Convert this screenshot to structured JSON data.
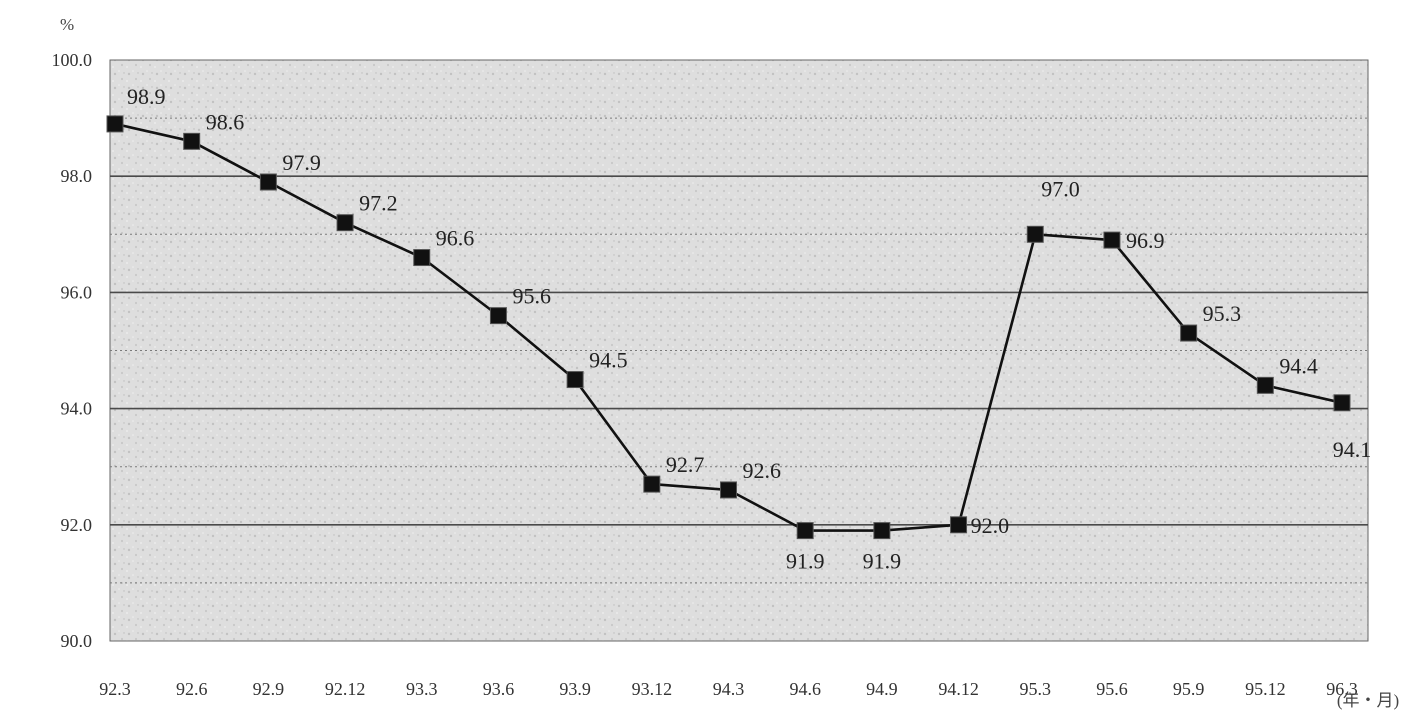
{
  "chart_data": {
    "type": "line",
    "title": "",
    "y_unit": "%",
    "x_unit": "(年・月)",
    "categories": [
      "92.3",
      "92.6",
      "92.9",
      "92.12",
      "93.3",
      "93.6",
      "93.9",
      "93.12",
      "94.3",
      "94.6",
      "94.9",
      "94.12",
      "95.3",
      "95.6",
      "95.9",
      "95.12",
      "96.3"
    ],
    "series": [
      {
        "values": [
          98.9,
          98.6,
          97.9,
          97.2,
          96.6,
          95.6,
          94.5,
          92.7,
          92.6,
          91.9,
          91.9,
          92.0,
          97.0,
          96.9,
          95.3,
          94.4,
          94.1
        ],
        "labels": [
          "98.9",
          "98.6",
          "97.9",
          "97.2",
          "96.6",
          "95.6",
          "94.5",
          "92.7",
          "92.6",
          "91.9",
          "91.9",
          "92.0",
          "97.0",
          "96.9",
          "95.3",
          "94.4",
          "94.1"
        ]
      }
    ],
    "yticks": [
      "100.0",
      "98.0",
      "96.0",
      "94.0",
      "92.0",
      "90.0"
    ],
    "ylim": [
      90,
      100
    ],
    "grid": true,
    "legend": "none",
    "colors": {
      "line": "#111111",
      "marker": "#111111",
      "plot_bg": "#dcdcdc",
      "grid": "#555555"
    }
  }
}
